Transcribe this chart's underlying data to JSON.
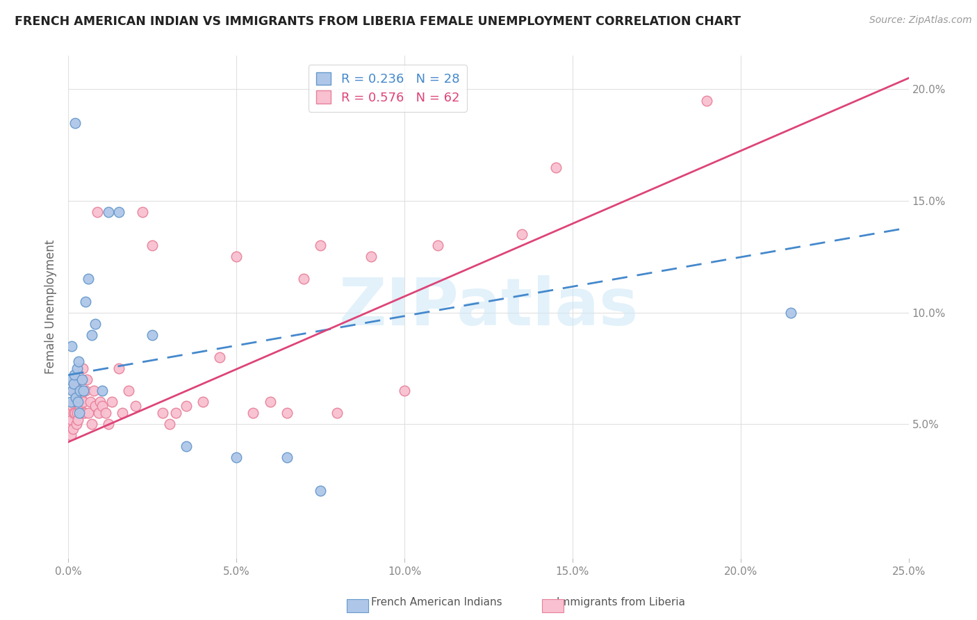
{
  "title": "FRENCH AMERICAN INDIAN VS IMMIGRANTS FROM LIBERIA FEMALE UNEMPLOYMENT CORRELATION CHART",
  "source": "Source: ZipAtlas.com",
  "ylabel": "Female Unemployment",
  "xlim": [
    0.0,
    25.0
  ],
  "ylim": [
    -1.0,
    21.5
  ],
  "yticks": [
    5.0,
    10.0,
    15.0,
    20.0
  ],
  "xticks": [
    0.0,
    5.0,
    10.0,
    15.0,
    20.0,
    25.0
  ],
  "blue_R": 0.236,
  "blue_N": 28,
  "pink_R": 0.576,
  "pink_N": 62,
  "blue_color": "#aec6e8",
  "blue_edge": "#6699cc",
  "pink_color": "#f8c0d0",
  "pink_edge": "#e8809a",
  "blue_line_color": "#4488cc",
  "pink_line_color": "#dd4477",
  "watermark_color": "#d0e8f8",
  "watermark": "ZIPatlas",
  "legend_label_blue": "French American Indians",
  "legend_label_pink": "Immigrants from Liberia",
  "blue_scatter_x": [
    0.05,
    0.08,
    0.1,
    0.12,
    0.15,
    0.18,
    0.2,
    0.22,
    0.25,
    0.28,
    0.3,
    0.32,
    0.35,
    0.4,
    0.45,
    0.5,
    0.6,
    0.7,
    0.8,
    1.0,
    1.2,
    1.5,
    2.5,
    3.5,
    5.0,
    6.5,
    7.5,
    21.5
  ],
  "blue_scatter_y": [
    7.0,
    6.0,
    8.5,
    6.5,
    6.8,
    7.2,
    18.5,
    6.2,
    7.5,
    6.0,
    7.8,
    5.5,
    6.5,
    7.0,
    6.5,
    10.5,
    11.5,
    9.0,
    9.5,
    6.5,
    14.5,
    14.5,
    9.0,
    4.0,
    3.5,
    3.5,
    2.0,
    10.0
  ],
  "pink_scatter_x": [
    0.05,
    0.07,
    0.08,
    0.1,
    0.12,
    0.13,
    0.15,
    0.16,
    0.18,
    0.2,
    0.22,
    0.23,
    0.25,
    0.27,
    0.28,
    0.3,
    0.32,
    0.35,
    0.37,
    0.4,
    0.42,
    0.45,
    0.48,
    0.5,
    0.55,
    0.6,
    0.65,
    0.7,
    0.75,
    0.8,
    0.85,
    0.9,
    0.95,
    1.0,
    1.1,
    1.2,
    1.3,
    1.5,
    1.6,
    1.8,
    2.0,
    2.2,
    2.5,
    2.8,
    3.0,
    3.2,
    3.5,
    4.0,
    4.5,
    5.0,
    5.5,
    6.0,
    6.5,
    7.0,
    7.5,
    8.0,
    9.0,
    10.0,
    11.0,
    13.5,
    14.5,
    19.0
  ],
  "pink_scatter_y": [
    5.0,
    5.5,
    4.5,
    5.2,
    5.8,
    4.8,
    6.5,
    5.5,
    6.0,
    5.5,
    6.8,
    5.0,
    5.5,
    6.0,
    5.2,
    7.0,
    6.5,
    5.8,
    6.2,
    5.5,
    7.5,
    6.0,
    5.5,
    6.5,
    7.0,
    5.5,
    6.0,
    5.0,
    6.5,
    5.8,
    14.5,
    5.5,
    6.0,
    5.8,
    5.5,
    5.0,
    6.0,
    7.5,
    5.5,
    6.5,
    5.8,
    14.5,
    13.0,
    5.5,
    5.0,
    5.5,
    5.8,
    6.0,
    8.0,
    12.5,
    5.5,
    6.0,
    5.5,
    11.5,
    13.0,
    5.5,
    12.5,
    6.5,
    13.0,
    13.5,
    16.5,
    19.5
  ],
  "blue_line_start_y": 7.2,
  "blue_line_end_y": 13.8,
  "pink_line_start_y": 4.2,
  "pink_line_end_y": 20.5
}
